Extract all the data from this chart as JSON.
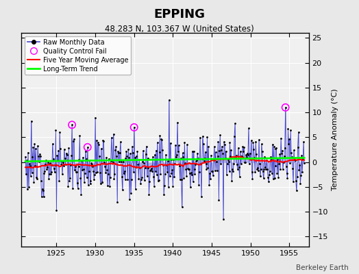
{
  "title": "EPPING",
  "subtitle": "48.283 N, 103.367 W (United States)",
  "credit": "Berkeley Earth",
  "ylabel": "Temperature Anomaly (°C)",
  "xlim": [
    1920.5,
    1957.5
  ],
  "ylim": [
    -17,
    26
  ],
  "yticks": [
    -15,
    -10,
    -5,
    0,
    5,
    10,
    15,
    20,
    25
  ],
  "xticks": [
    1925,
    1930,
    1935,
    1940,
    1945,
    1950,
    1955
  ],
  "fig_facecolor": "#e8e8e8",
  "plot_facecolor": "#f0f0f0",
  "seed": 12
}
